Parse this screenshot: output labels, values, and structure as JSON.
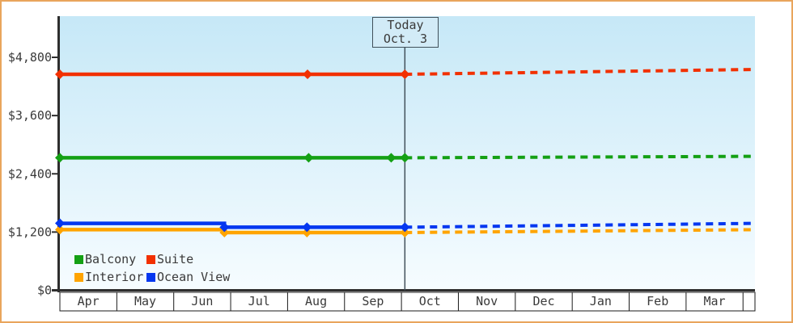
{
  "chart_data": {
    "type": "line",
    "title": "",
    "x_axis": {
      "unit": "months (0 = start of Apr)",
      "months": [
        "Apr",
        "May",
        "Jun",
        "Jul",
        "Aug",
        "Sep",
        "Oct",
        "Nov",
        "Dec",
        "Jan",
        "Feb",
        "Mar"
      ],
      "units_total": 12.21
    },
    "y_axis": {
      "max": 4800,
      "ticks": [
        {
          "value": 0,
          "label": "$0"
        },
        {
          "value": 1200,
          "label": "$1,200"
        },
        {
          "value": 2400,
          "label": "$2,400"
        },
        {
          "value": 3600,
          "label": "$3,600"
        },
        {
          "value": 4800,
          "label": "$4,800"
        }
      ]
    },
    "today": {
      "line1": "Today",
      "line2": "Oct. 3",
      "x": 6.06
    },
    "legend_position": "bottom-left",
    "grid": false,
    "series": [
      {
        "id": "balcony",
        "name": "Balcony",
        "color": "#14a014",
        "history": [
          [
            0,
            2730
          ],
          [
            6.06,
            2730
          ]
        ],
        "forecast": [
          [
            6.06,
            2730
          ],
          [
            12.21,
            2760
          ]
        ],
        "markers": [
          [
            0,
            2730
          ],
          [
            4.37,
            2730
          ],
          [
            5.82,
            2730
          ],
          [
            6.06,
            2730
          ]
        ]
      },
      {
        "id": "suite",
        "name": "Suite",
        "color": "#f23000",
        "history": [
          [
            0,
            4450
          ],
          [
            6.06,
            4450
          ]
        ],
        "forecast": [
          [
            6.06,
            4450
          ],
          [
            12.21,
            4550
          ]
        ],
        "markers": [
          [
            0,
            4450
          ],
          [
            4.35,
            4450
          ],
          [
            6.06,
            4450
          ]
        ]
      },
      {
        "id": "interior",
        "name": "Interior",
        "color": "#ffa400",
        "history": [
          [
            0,
            1250
          ],
          [
            2.89,
            1250
          ],
          [
            2.89,
            1190
          ],
          [
            6.06,
            1190
          ]
        ],
        "forecast": [
          [
            6.06,
            1190
          ],
          [
            12.21,
            1250
          ]
        ],
        "markers": [
          [
            0,
            1250
          ],
          [
            2.89,
            1190
          ],
          [
            4.34,
            1190
          ],
          [
            6.06,
            1190
          ]
        ]
      },
      {
        "id": "ocean_view",
        "name": "Ocean View",
        "color": "#0437f0",
        "history": [
          [
            0,
            1380
          ],
          [
            2.89,
            1380
          ],
          [
            2.89,
            1300
          ],
          [
            6.06,
            1300
          ]
        ],
        "forecast": [
          [
            6.06,
            1300
          ],
          [
            12.21,
            1380
          ]
        ],
        "markers": [
          [
            0,
            1380
          ],
          [
            2.89,
            1300
          ],
          [
            4.34,
            1300
          ],
          [
            6.06,
            1300
          ]
        ]
      }
    ],
    "colors": {
      "plot_bg_top": "#c6e8f7",
      "plot_bg_bottom": "#f6fcff",
      "axis": "#2e2e2e",
      "frame_border": "#e9a55c",
      "today_line": "#41505a",
      "text": "#3a3a3a"
    }
  }
}
